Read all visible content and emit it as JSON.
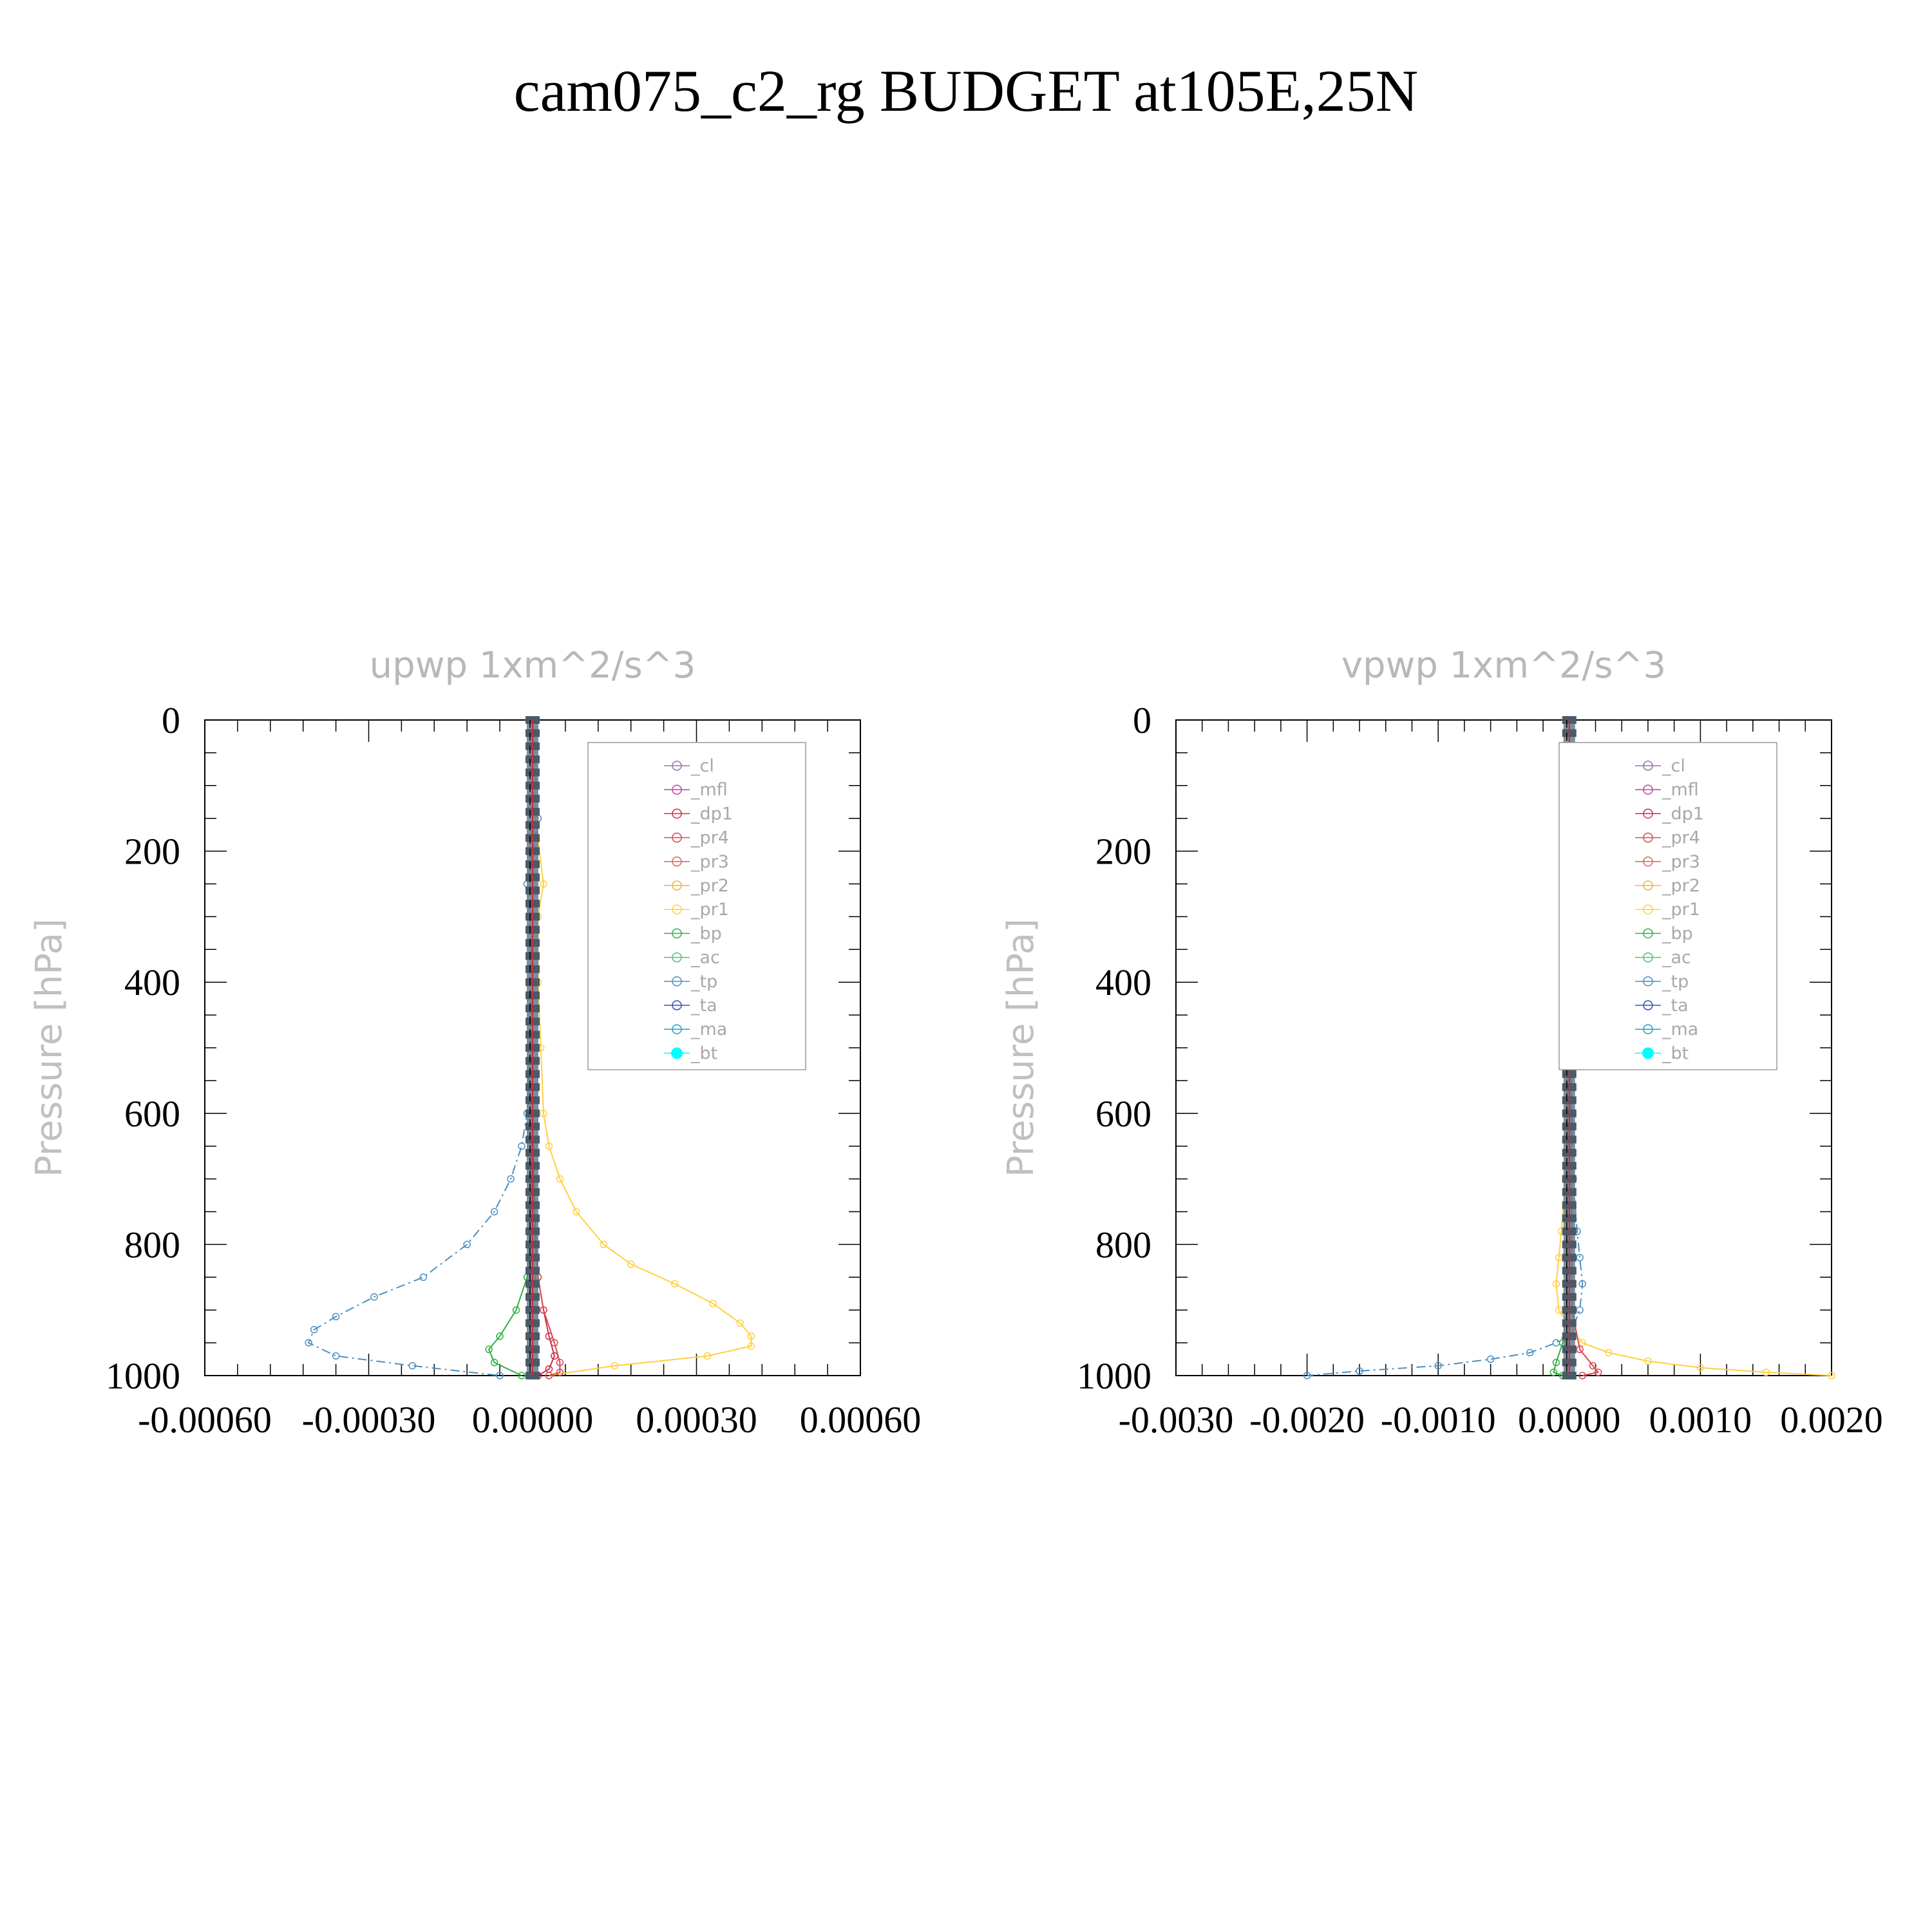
{
  "title": "cam075_c2_rg  BUDGET at105E,25N",
  "legend_entries": [
    "_cl",
    "_mfl",
    "_dp1",
    "_pr4",
    "_pr3",
    "_pr2",
    "_pr1",
    "_bp",
    "_ac",
    "_tp",
    "_ta",
    "_ma",
    "_bt"
  ],
  "series_colors": {
    "_cl": "#9a6fb0",
    "_mfl": "#c040a0",
    "_dp1": "#c8304a",
    "_pr4": "#d84850",
    "_pr3": "#e06050",
    "_pr2": "#f0b040",
    "_pr1": "#ffd040",
    "_bp": "#30b040",
    "_ac": "#50c070",
    "_tp": "#4a90c0",
    "_ta": "#3050c0",
    "_ma": "#20a0c0",
    "_bt": "#00ffff"
  },
  "chart_data": [
    {
      "type": "line",
      "title": "upwp   1xm^2/s^3",
      "ylabel": "Pressure [hPa]",
      "xlabel": "",
      "xlim": [
        -0.0006,
        0.0006
      ],
      "ylim": [
        1000,
        0
      ],
      "x_ticks": [
        "-0.00060",
        "-0.00030",
        "0.00000",
        "0.00030",
        "0.00060"
      ],
      "x_tick_values": [
        -0.0006,
        -0.0003,
        0,
        0.0003,
        0.0006
      ],
      "y_ticks": [
        "0",
        "200",
        "400",
        "600",
        "800",
        "1000"
      ],
      "y_tick_values": [
        0,
        200,
        400,
        600,
        800,
        1000
      ],
      "legend_position": "top-right",
      "series": [
        {
          "name": "_tp",
          "pressure": [
            0,
            150,
            250,
            300,
            400,
            500,
            600,
            650,
            700,
            750,
            800,
            850,
            880,
            910,
            930,
            950,
            970,
            985,
            1000
          ],
          "values": [
            0,
            1e-05,
            -1e-05,
            -5e-06,
            0,
            -5e-06,
            -1e-05,
            -2e-05,
            -4e-05,
            -7e-05,
            -0.00012,
            -0.0002,
            -0.00029,
            -0.00036,
            -0.0004,
            -0.00041,
            -0.00036,
            -0.00022,
            -6e-05
          ]
        },
        {
          "name": "_pr1",
          "pressure": [
            0,
            150,
            250,
            300,
            400,
            500,
            600,
            650,
            700,
            750,
            800,
            830,
            860,
            890,
            920,
            940,
            955,
            970,
            985,
            1000
          ],
          "values": [
            0,
            5e-06,
            2e-05,
            1e-05,
            1e-05,
            1.5e-05,
            2e-05,
            3e-05,
            5e-05,
            8e-05,
            0.00013,
            0.00018,
            0.00026,
            0.00033,
            0.00038,
            0.0004,
            0.0004,
            0.00032,
            0.00015,
            3e-05
          ]
        },
        {
          "name": "_bp",
          "pressure": [
            0,
            600,
            800,
            850,
            900,
            940,
            960,
            980,
            1000
          ],
          "values": [
            0,
            0,
            -5e-06,
            -1e-05,
            -3e-05,
            -6e-05,
            -8e-05,
            -7e-05,
            -2e-05
          ]
        },
        {
          "name": "_dp1",
          "pressure": [
            0,
            600,
            800,
            850,
            900,
            940,
            970,
            990,
            1000
          ],
          "values": [
            0,
            0,
            5e-06,
            1e-05,
            2e-05,
            3e-05,
            4e-05,
            3e-05,
            1e-05
          ]
        },
        {
          "name": "_pr4",
          "pressure": [
            0,
            700,
            850,
            900,
            950,
            980,
            995,
            1000
          ],
          "values": [
            0,
            0,
            1e-05,
            2e-05,
            4e-05,
            5e-05,
            5e-05,
            3e-05
          ]
        }
      ]
    },
    {
      "type": "line",
      "title": "vpwp   1xm^2/s^3",
      "ylabel": "Pressure [hPa]",
      "xlabel": "",
      "xlim": [
        -0.003,
        0.002
      ],
      "ylim": [
        1000,
        0
      ],
      "x_ticks": [
        "-0.0030",
        "-0.0020",
        "-0.0010",
        "0.0000",
        "0.0010",
        "0.0020"
      ],
      "x_tick_values": [
        -0.003,
        -0.002,
        -0.001,
        0,
        0.001,
        0.002
      ],
      "y_ticks": [
        "0",
        "200",
        "400",
        "600",
        "800",
        "1000"
      ],
      "y_tick_values": [
        0,
        200,
        400,
        600,
        800,
        1000
      ],
      "legend_position": "top-right",
      "series": [
        {
          "name": "_tp",
          "pressure": [
            0,
            400,
            700,
            780,
            820,
            860,
            900,
            930,
            950,
            965,
            975,
            985,
            993,
            1000
          ],
          "values": [
            0,
            0,
            3e-05,
            6e-05,
            8e-05,
            0.0001,
            8e-05,
            2e-05,
            -0.0001,
            -0.0003,
            -0.0006,
            -0.001,
            -0.0016,
            -0.002
          ]
        },
        {
          "name": "_pr1",
          "pressure": [
            0,
            400,
            700,
            780,
            820,
            860,
            900,
            930,
            950,
            965,
            978,
            988,
            995,
            1000
          ],
          "values": [
            0,
            0,
            -3e-05,
            -6e-05,
            -8e-05,
            -0.0001,
            -8e-05,
            2e-05,
            0.0001,
            0.0003,
            0.0006,
            0.001,
            0.0015,
            0.002
          ]
        },
        {
          "name": "_bp",
          "pressure": [
            0,
            900,
            950,
            980,
            995,
            1000
          ],
          "values": [
            0,
            -2e-05,
            -5e-05,
            -0.0001,
            -0.00012,
            -5e-05
          ]
        },
        {
          "name": "_pr4",
          "pressure": [
            0,
            900,
            960,
            985,
            995,
            1000
          ],
          "values": [
            0,
            2e-05,
            8e-05,
            0.00018,
            0.00022,
            0.0001
          ]
        }
      ]
    }
  ]
}
